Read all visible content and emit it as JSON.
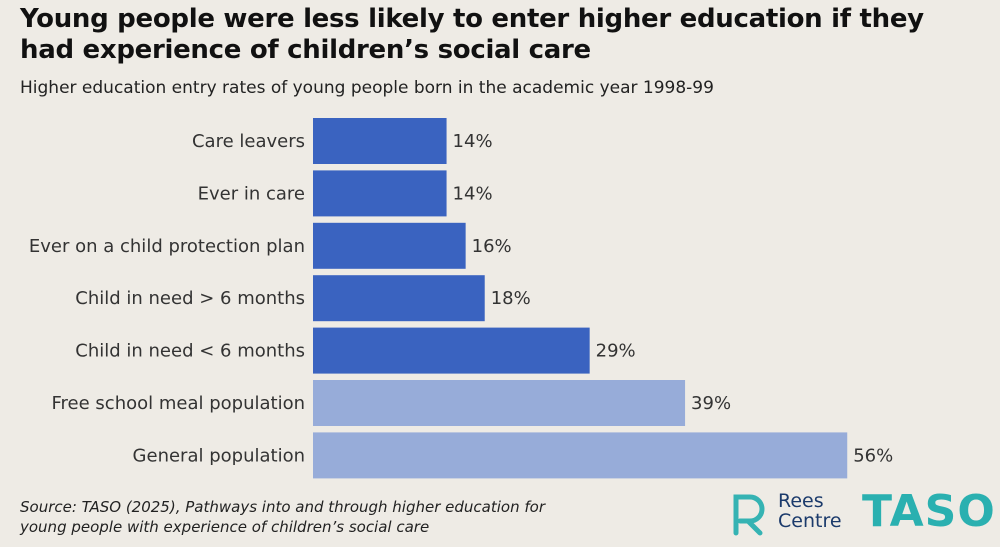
{
  "chart_data": {
    "type": "hbar",
    "title": "Young people were less likely to enter higher education if they had experience of children’s social care",
    "subtitle": "Higher education entry rates of young people born in the academic year 1998-99",
    "categories": [
      "Care leavers",
      "Ever in care",
      "Ever on a child protection plan",
      "Child in need > 6 months",
      "Child in need < 6 months",
      "Free school meal population",
      "General population"
    ],
    "values": [
      14,
      14,
      16,
      18,
      29,
      39,
      56
    ],
    "value_labels": [
      "14%",
      "14%",
      "16%",
      "18%",
      "29%",
      "39%",
      "56%"
    ],
    "colors": [
      "#3a63c0",
      "#3a63c0",
      "#3a63c0",
      "#3a63c0",
      "#3a63c0",
      "#97acd9",
      "#97acd9"
    ],
    "source": "Source: TASO (2025), Pathways into and through higher education for young people with experience of children’s social care"
  },
  "logos": [
    [
      "Rees",
      "Centre"
    ],
    "TASO"
  ]
}
